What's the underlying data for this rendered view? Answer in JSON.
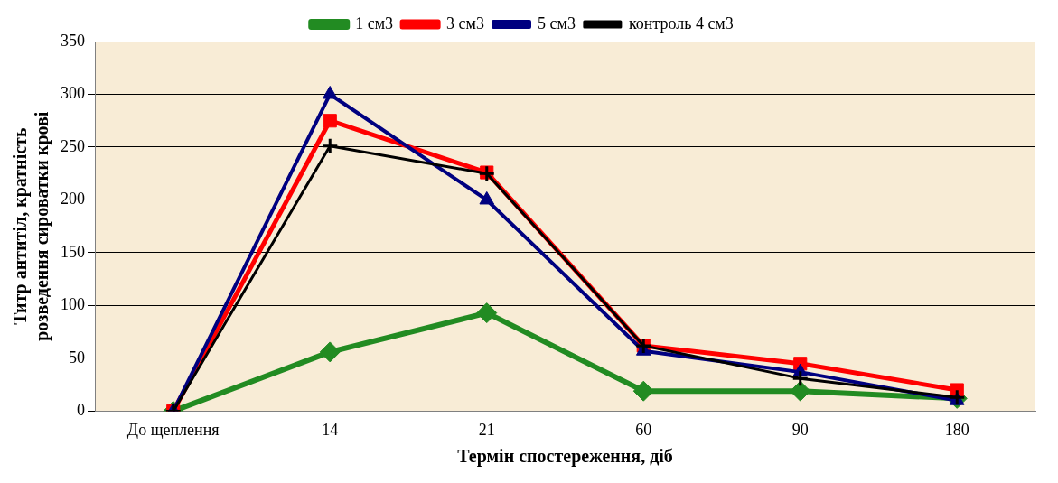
{
  "chart_data": {
    "type": "line",
    "xlabel": "Термін спостереження, діб",
    "ylabel": "Титр антитіл, кратність розведення сироватки крові",
    "categories": [
      "До щеплення",
      "14",
      "21",
      "60",
      "90",
      "180"
    ],
    "series": [
      {
        "name": "1 см3",
        "color": "#228b22",
        "marker": "diamond",
        "values": [
          0,
          56,
          93,
          19,
          19,
          12
        ]
      },
      {
        "name": "3 см3",
        "color": "#ff0000",
        "marker": "square",
        "values": [
          0,
          275,
          226,
          62,
          45,
          20
        ]
      },
      {
        "name": "5 см3",
        "color": "#000080",
        "marker": "triangle",
        "values": [
          0,
          300,
          200,
          57,
          37,
          10
        ]
      },
      {
        "name": "контроль 4 см3",
        "color": "#000000",
        "marker": "cross",
        "values": [
          0,
          251,
          225,
          62,
          31,
          13
        ]
      }
    ],
    "ylim": [
      0,
      350
    ],
    "yticks": [
      0,
      50,
      100,
      150,
      200,
      250,
      300,
      350
    ],
    "grid": "y",
    "legend": "top"
  }
}
